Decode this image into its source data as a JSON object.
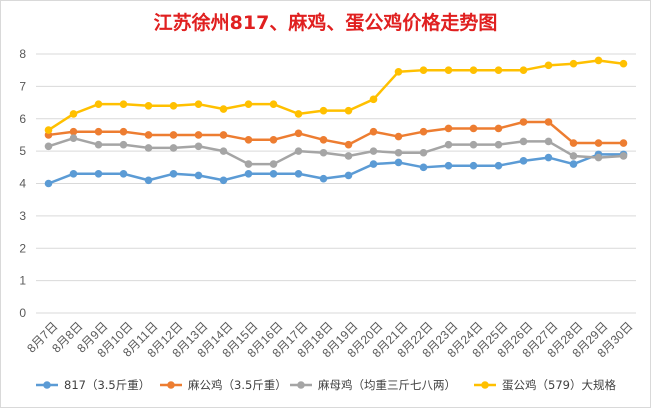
{
  "chart_data": {
    "type": "line",
    "title": "江苏徐州817、麻鸡、蛋公鸡价格走势图",
    "categories": [
      "8月7日",
      "8月8日",
      "8月9日",
      "8月10日",
      "8月11日",
      "8月12日",
      "8月13日",
      "8月14日",
      "8月15日",
      "8月16日",
      "8月17日",
      "8月18日",
      "8月19日",
      "8月20日",
      "8月21日",
      "8月22日",
      "8月23日",
      "8月24日",
      "8月25日",
      "8月26日",
      "8月27日",
      "8月28日",
      "8月29日",
      "8月30日"
    ],
    "ylim": [
      0,
      8
    ],
    "yticks": [
      0,
      1,
      2,
      3,
      4,
      5,
      6,
      7,
      8
    ],
    "grid": true,
    "legend_position": "bottom",
    "series": [
      {
        "name": "817（3.5斤重）",
        "color": "#5b9bd5",
        "values": [
          4.0,
          4.3,
          4.3,
          4.3,
          4.1,
          4.3,
          4.25,
          4.1,
          4.3,
          4.3,
          4.3,
          4.15,
          4.25,
          4.6,
          4.65,
          4.5,
          4.55,
          4.55,
          4.55,
          4.7,
          4.8,
          4.6,
          4.9,
          4.9
        ]
      },
      {
        "name": "麻公鸡（3.5斤重）",
        "color": "#ed7d31",
        "values": [
          5.5,
          5.6,
          5.6,
          5.6,
          5.5,
          5.5,
          5.5,
          5.5,
          5.35,
          5.35,
          5.55,
          5.35,
          5.2,
          5.6,
          5.45,
          5.6,
          5.7,
          5.7,
          5.7,
          5.9,
          5.9,
          5.25,
          5.25,
          5.25
        ]
      },
      {
        "name": "麻母鸡（均重三斤七八两）",
        "color": "#a5a5a5",
        "values": [
          5.15,
          5.4,
          5.2,
          5.2,
          5.1,
          5.1,
          5.15,
          5.0,
          4.6,
          4.6,
          5.0,
          4.95,
          4.85,
          5.0,
          4.95,
          4.95,
          5.2,
          5.2,
          5.2,
          5.3,
          5.3,
          4.85,
          4.8,
          4.85
        ]
      },
      {
        "name": "蛋公鸡（579）大规格",
        "color": "#ffc000",
        "values": [
          5.65,
          6.15,
          6.45,
          6.45,
          6.4,
          6.4,
          6.45,
          6.3,
          6.45,
          6.45,
          6.15,
          6.25,
          6.25,
          6.6,
          7.45,
          7.5,
          7.5,
          7.5,
          7.5,
          7.5,
          7.65,
          7.7,
          7.8,
          7.7
        ]
      }
    ]
  }
}
